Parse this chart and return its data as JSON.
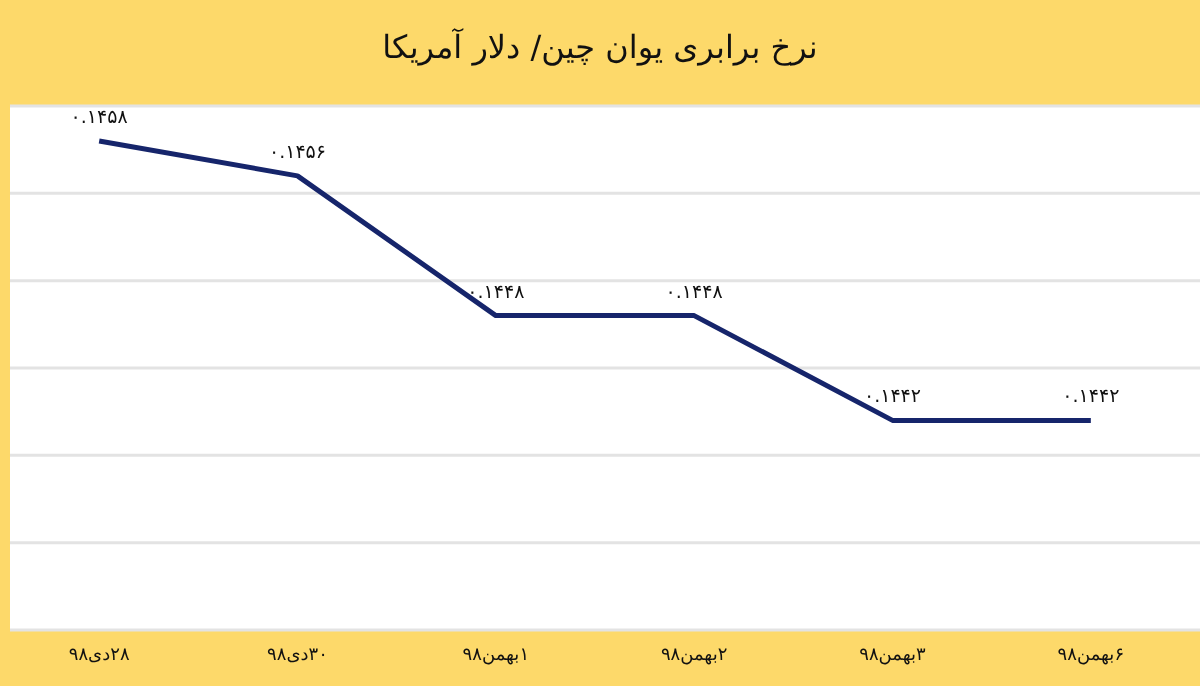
{
  "chart_data": {
    "type": "line",
    "title": "نرخ برابری یوان چین/ دلار آمریکا",
    "categories": [
      "۲۸دی۹۸",
      "۳۰دی۹۸",
      "۱بهمن۹۸",
      "۲بهمن۹۸",
      "۳بهمن۹۸",
      "۶بهمن۹۸"
    ],
    "series": [
      {
        "color": "#16256b",
        "values": [
          0.1458,
          0.1456,
          0.1448,
          0.1448,
          0.1442,
          0.1442
        ],
        "value_labels": [
          "۰.۱۴۵۸",
          "۰.۱۴۵۶",
          "۰.۱۴۴۸",
          "۰.۱۴۴۸",
          "۰.۱۴۴۲",
          "۰.۱۴۴۲"
        ]
      }
    ],
    "ylim": [
      0.143,
      0.146
    ],
    "yticks": [
      {
        "value": 0.143,
        "label": null
      },
      {
        "value": 0.1435,
        "label": null
      },
      {
        "value": 0.144,
        "label": null
      },
      {
        "value": 0.1445,
        "label": null
      },
      {
        "value": 0.145,
        "label": null
      },
      {
        "value": 0.1455,
        "label": null
      },
      {
        "value": 0.146,
        "label": null
      }
    ],
    "grid": "y",
    "marker": "none",
    "line_style": "solid",
    "tick_labels": "x"
  }
}
